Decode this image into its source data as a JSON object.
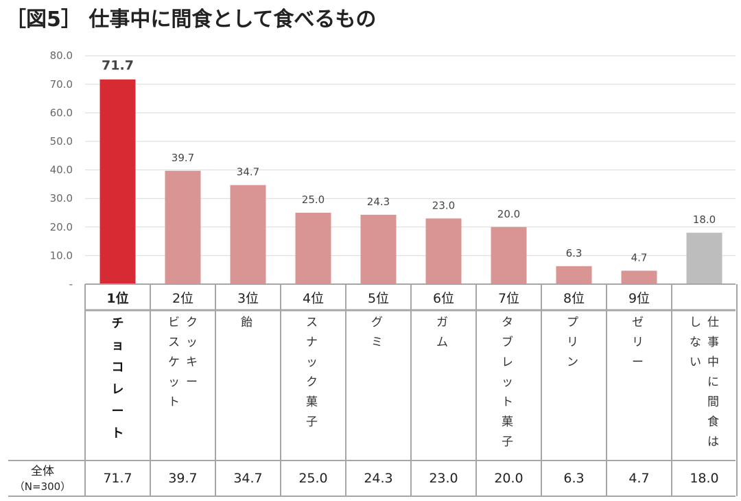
{
  "title": "［図5］ 仕事中に間食として食べるもの",
  "chart_data": {
    "type": "bar",
    "title": "［図5］ 仕事中に間食として食べるもの",
    "ylim": [
      0,
      80
    ],
    "yticks": [
      "-",
      "10.0",
      "20.0",
      "30.0",
      "40.0",
      "50.0",
      "60.0",
      "70.0",
      "80.0"
    ],
    "grid": true,
    "colors": {
      "top": "#d62b32",
      "rest": "#d99494",
      "none": "#bdbdbd"
    },
    "categories": [
      {
        "rank": "1位",
        "name_cols": [
          "チョコレート"
        ],
        "value": 71.7,
        "label": "71.7",
        "table_value": "71.7",
        "style": "top"
      },
      {
        "rank": "2位",
        "name_cols": [
          "クッキー",
          "ビスケット"
        ],
        "value": 39.7,
        "label": "39.7",
        "table_value": "39.7",
        "style": "rest"
      },
      {
        "rank": "3位",
        "name_cols": [
          "飴"
        ],
        "value": 34.7,
        "label": "34.7",
        "table_value": "34.7",
        "style": "rest"
      },
      {
        "rank": "4位",
        "name_cols": [
          "スナック菓子"
        ],
        "value": 25.0,
        "label": "25.0",
        "table_value": "25.0",
        "style": "rest"
      },
      {
        "rank": "5位",
        "name_cols": [
          "グミ"
        ],
        "value": 24.3,
        "label": "24.3",
        "table_value": "24.3",
        "style": "rest"
      },
      {
        "rank": "6位",
        "name_cols": [
          "ガム"
        ],
        "value": 23.0,
        "label": "23.0",
        "table_value": "23.0",
        "style": "rest"
      },
      {
        "rank": "7位",
        "name_cols": [
          "タブレット菓子"
        ],
        "value": 20.0,
        "label": "20.0",
        "table_value": "20.0",
        "style": "rest"
      },
      {
        "rank": "8位",
        "name_cols": [
          "プリン"
        ],
        "value": 6.3,
        "label": "6.3",
        "table_value": "6.3",
        "style": "rest"
      },
      {
        "rank": "9位",
        "name_cols": [
          "ゼリー"
        ],
        "value": 4.7,
        "label": "4.7",
        "table_value": "4.7",
        "style": "rest"
      },
      {
        "rank": "",
        "name_cols": [
          "仕事中に間食は",
          "しない"
        ],
        "value": 18.0,
        "label": "18.0",
        "table_value": "18.0",
        "style": "none"
      }
    ],
    "row_label": [
      "全体",
      "（N=300）"
    ]
  }
}
